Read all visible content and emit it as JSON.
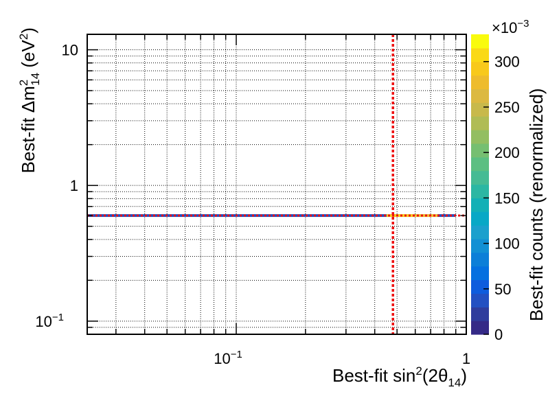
{
  "chart_data": {
    "type": "heatmap",
    "title": "",
    "xlabel": {
      "prefix": "Best-fit sin",
      "sup": "2",
      "mid": "(2θ",
      "sub": "14",
      "suffix": ")"
    },
    "ylabel": {
      "prefix": "Best-fit Δm",
      "sup1": "2",
      "sub": "14",
      "mid": " (eV",
      "sup2": "2",
      "suffix": ")"
    },
    "zlabel": "Best-fit counts (renormalized)",
    "xscale": "log",
    "yscale": "log",
    "xlim": [
      0.0225,
      1.0
    ],
    "ylim": [
      0.08,
      13
    ],
    "x_ticklabels": [
      {
        "value": 0.1,
        "base": "10",
        "exp": "−1"
      },
      {
        "value": 1,
        "base": "1",
        "exp": ""
      }
    ],
    "y_ticklabels": [
      {
        "value": 0.1,
        "base": "10",
        "exp": "−1"
      },
      {
        "value": 1,
        "base": "1",
        "exp": ""
      },
      {
        "value": 10,
        "base": "10",
        "exp": ""
      }
    ],
    "grid": true,
    "z_multiplier": {
      "base": "×10",
      "exp": "−3"
    },
    "z_range": [
      0,
      330
    ],
    "z_ticks": [
      0,
      50,
      100,
      150,
      200,
      250,
      300
    ],
    "palette": [
      "#352a87",
      "#2f3d9d",
      "#2350c2",
      "#0f5cdd",
      "#0470e0",
      "#0c7fd8",
      "#1290d4",
      "#1ba0cd",
      "#08a8c6",
      "#12b0b6",
      "#2bb7a3",
      "#46bb94",
      "#5cbf82",
      "#76bf71",
      "#93be61",
      "#b0bc55",
      "#c8b94b",
      "#dcb941",
      "#eebc2d",
      "#f8c91b",
      "#fad916",
      "#f9fb0e"
    ],
    "band": {
      "y": 0.6,
      "cells": [
        {
          "x": [
            0.0225,
            0.9
          ],
          "z": 2,
          "color": "#2350c2"
        },
        {
          "x": [
            0.45,
            0.6
          ],
          "z": 300,
          "color": "#f8c91b"
        },
        {
          "x": [
            0.6,
            0.75
          ],
          "z": 280,
          "color": "#eebc2d"
        }
      ]
    },
    "best_fit_lines": {
      "x": 0.48,
      "y": 0.6,
      "color": "#ee1111",
      "style": "dotted"
    }
  }
}
